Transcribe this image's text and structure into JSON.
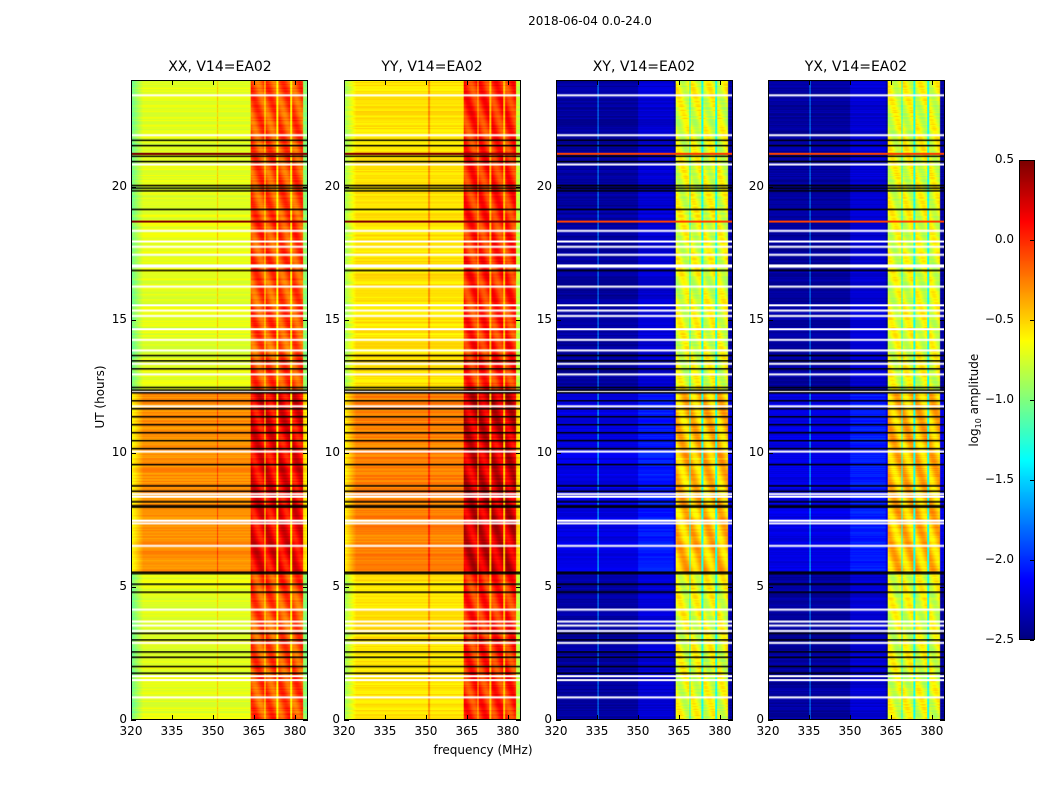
{
  "figure": {
    "suptitle": "2018-06-04 0.0-24.0",
    "xlabel": "frequency (MHz)",
    "ylabel": "UT (hours)",
    "colorbar_label_prefix": "log",
    "colorbar_label_sub": "10",
    "colorbar_label_suffix": " amplitude"
  },
  "chart_data": {
    "type": "heatmap",
    "title": "2018-06-04 0.0-24.0",
    "xlabel": "frequency (MHz)",
    "ylabel": "UT (hours)",
    "xlim": [
      320,
      384.8
    ],
    "ylim": [
      0,
      24
    ],
    "xticks": [
      320,
      335,
      350,
      365,
      380
    ],
    "yticks": [
      0,
      5,
      10,
      15,
      20
    ],
    "colormap": "jet",
    "clim": [
      -2.5,
      0.5
    ],
    "colorbar": {
      "label": "log10 amplitude",
      "ticks": [
        "0.5",
        "0.0",
        "−0.5",
        "−1.0",
        "−1.5",
        "−2.0",
        "−2.5"
      ],
      "tick_values": [
        0.5,
        0.0,
        -0.5,
        -1.0,
        -1.5,
        -2.0,
        -2.5
      ]
    },
    "panels": [
      {
        "title": "XX, V14=EA02",
        "kind": "parallel",
        "base_low": -0.7,
        "base_high": -0.3,
        "band_level": -0.1,
        "spike_freq": 351.5
      },
      {
        "title": "YY, V14=EA02",
        "kind": "parallel",
        "base_low": -0.55,
        "base_high": -0.25,
        "band_level": 0.0,
        "spike_freq": 351.0
      },
      {
        "title": "XY, V14=EA02",
        "kind": "cross",
        "base_low": -2.4,
        "base_high": -2.1,
        "band_level": -0.7,
        "spike_freq": 335.0
      },
      {
        "title": "YX, V14=EA02",
        "kind": "cross",
        "base_low": -2.4,
        "base_high": -2.1,
        "band_level": -0.7,
        "spike_freq": 335.0
      }
    ],
    "sub_bands_mhz": [
      [
        363.6,
        368.8
      ],
      [
        369.4,
        373.4
      ],
      [
        374.0,
        378.4
      ],
      [
        379.0,
        383.0
      ]
    ],
    "high_amplitude_time_ranges_hours": [
      [
        5.5,
        12.4
      ]
    ],
    "flagged_rows_black_hours": [
      1.75,
      2.0,
      2.35,
      2.55,
      3.0,
      3.25,
      4.8,
      5.1,
      5.5,
      5.55,
      8.0,
      8.05,
      8.2,
      8.6,
      8.8,
      9.6,
      10.2,
      10.5,
      10.8,
      11.1,
      11.4,
      11.7,
      12.0,
      12.3,
      12.4,
      12.5,
      13.2,
      13.5,
      13.7,
      16.9,
      19.2,
      19.9,
      20.0,
      20.1,
      21.0,
      21.2,
      21.6,
      21.8
    ],
    "flagged_rows_white_hours": [
      0.85,
      1.5,
      1.65,
      2.9,
      3.35,
      3.55,
      3.7,
      4.15,
      6.55,
      7.4,
      7.5,
      8.5,
      8.4,
      10.1,
      11.8,
      12.35,
      13.0,
      13.4,
      13.9,
      14.3,
      14.7,
      15.2,
      15.4,
      15.6,
      16.3,
      17.05,
      17.1,
      17.5,
      17.8,
      18.0,
      18.4,
      20.9,
      23.5,
      22.0
    ],
    "rfi_rows_hours": [
      18.75,
      21.3
    ]
  }
}
